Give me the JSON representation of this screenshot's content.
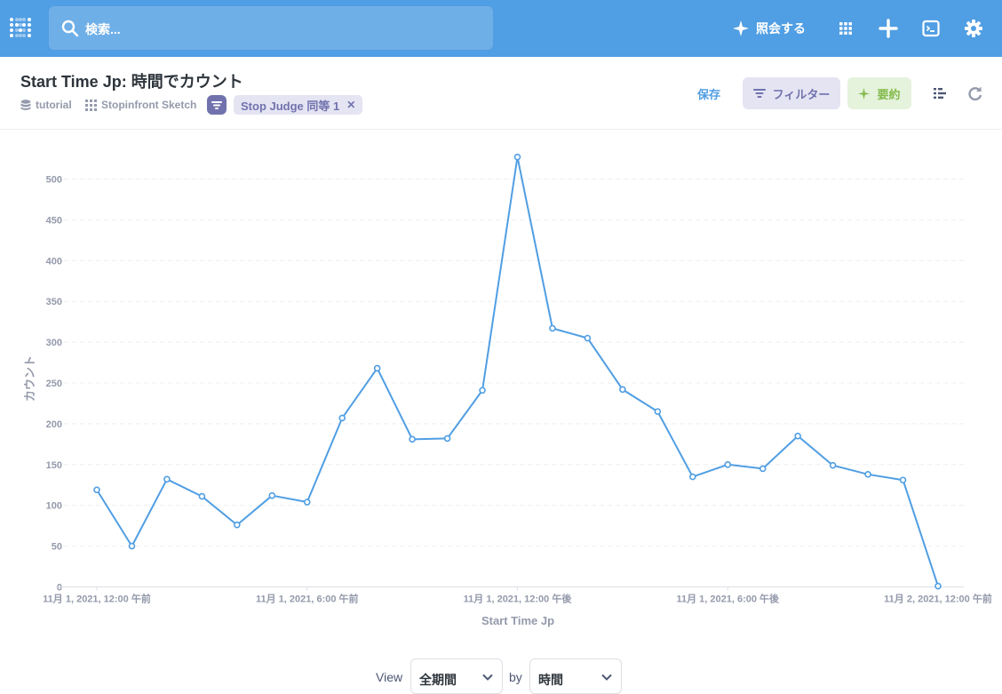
{
  "nav": {
    "search_placeholder": "検索...",
    "ask_label": "照会する"
  },
  "header": {
    "title": "Start Time Jp: 時間でカウント",
    "database": "tutorial",
    "table": "Stopinfront Sketch",
    "filter_pill": "Stop Judge 同等 1",
    "save_label": "保存",
    "filter_label": "フィルター",
    "summarize_label": "要約"
  },
  "colors": {
    "brand": "#509ee3",
    "filter": "#7172ad",
    "summarize": "#84bb4c"
  },
  "chart_data": {
    "type": "line",
    "xlabel": "Start Time Jp",
    "ylabel": "カウント",
    "ylim": [
      0,
      500
    ],
    "yticks": [
      "0",
      "50",
      "100",
      "150",
      "200",
      "250",
      "300",
      "350",
      "400",
      "450",
      "500"
    ],
    "xticks": [
      "11月 1, 2021, 12:00 午前",
      "11月 1, 2021, 6:00 午前",
      "11月 1, 2021, 12:00 午後",
      "11月 1, 2021, 6:00 午後",
      "11月 2, 2021, 12:00 午前"
    ],
    "grid": "horizontal dashed",
    "series": [
      {
        "color": "#509ee3",
        "x": [
          0,
          1,
          2,
          3,
          4,
          5,
          6,
          7,
          8,
          9,
          10,
          11,
          12,
          13,
          14,
          15,
          16,
          17,
          18,
          19,
          20,
          21,
          22,
          23,
          24
        ],
        "values": [
          119,
          50,
          132,
          111,
          76,
          112,
          104,
          207,
          268,
          181,
          182,
          241,
          527,
          317,
          305,
          242,
          215,
          135,
          150,
          145,
          185,
          149,
          138,
          131,
          1
        ]
      }
    ]
  },
  "footer": {
    "view_label": "View",
    "period_value": "全期間",
    "by_label": "by",
    "unit_value": "時間"
  }
}
